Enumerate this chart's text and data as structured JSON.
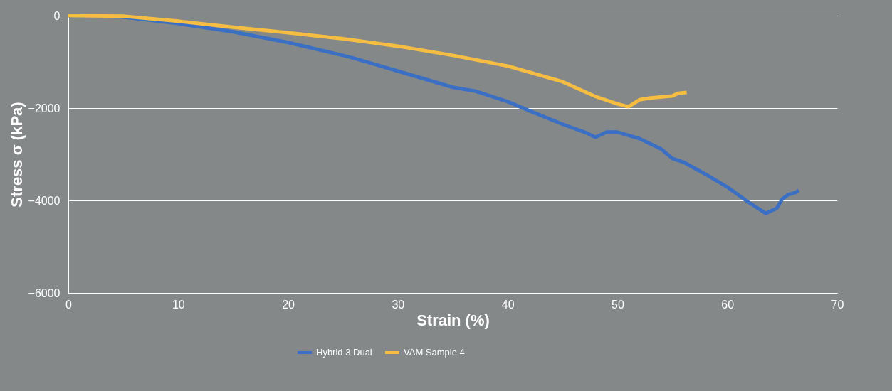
{
  "chart_data": {
    "type": "line",
    "xlabel": "Strain (%)",
    "ylabel": "Stress σ (kPa)",
    "x": [
      0,
      5,
      10,
      15,
      20,
      25,
      26,
      30,
      35,
      37,
      40,
      42,
      45,
      47,
      48,
      49,
      50,
      52,
      54,
      55,
      56,
      58,
      60,
      62,
      63.5,
      64.5,
      65,
      65.5,
      66.3,
      66.5
    ],
    "series": [
      {
        "name": "Hybrid 3 Dual",
        "color": "#3a6fc4",
        "values": [
          0,
          -30,
          -170,
          -350,
          -580,
          -860,
          -920,
          -1200,
          -1550,
          -1630,
          -1860,
          -2060,
          -2350,
          -2520,
          -2630,
          -2520,
          -2520,
          -2660,
          -2890,
          -3090,
          -3170,
          -3430,
          -3710,
          -4050,
          -4280,
          -4170,
          -3970,
          -3880,
          -3820,
          -3780
        ]
      },
      {
        "name": "VAM Sample 4",
        "color": "#f5bd42",
        "x": [
          0,
          5,
          10,
          15,
          20,
          25,
          30,
          35,
          40,
          45,
          48,
          50,
          51,
          52,
          53,
          55,
          55.5,
          56.3
        ],
        "values": [
          0,
          -10,
          -120,
          -250,
          -370,
          -500,
          -660,
          -860,
          -1090,
          -1430,
          -1750,
          -1910,
          -1970,
          -1820,
          -1780,
          -1740,
          -1680,
          -1660
        ]
      }
    ],
    "xlim": [
      0,
      70
    ],
    "xticks": [
      0,
      10,
      20,
      30,
      40,
      50,
      60,
      70
    ],
    "ylim": [
      -6000,
      0
    ],
    "yticks": [
      -6000,
      -4000,
      -2000,
      0
    ],
    "grid": "y",
    "legend": "bottom",
    "marker": "none",
    "line_style": "solid"
  }
}
